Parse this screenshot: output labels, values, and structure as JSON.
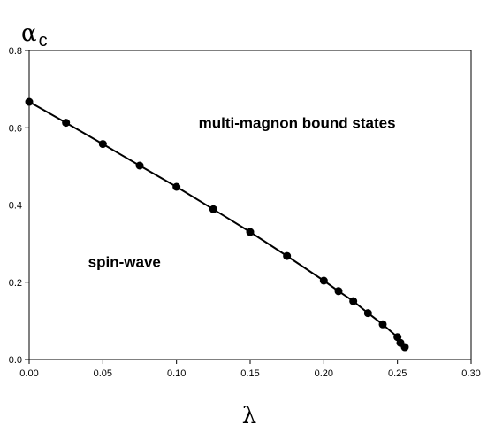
{
  "chart_data": {
    "type": "line",
    "ylabel": "α",
    "ylabel_sub": "c",
    "xlabel": "λ",
    "xlim": [
      0.0,
      0.3
    ],
    "ylim": [
      0.0,
      0.8
    ],
    "x_ticks": [
      "0.00",
      "0.05",
      "0.10",
      "0.15",
      "0.20",
      "0.25",
      "0.30"
    ],
    "y_ticks": [
      "0.0",
      "0.2",
      "0.4",
      "0.6",
      "0.8"
    ],
    "grid": false,
    "series": [
      {
        "color": "#000000",
        "marker": "circle",
        "x": [
          0.0,
          0.025,
          0.05,
          0.075,
          0.1,
          0.125,
          0.15,
          0.175,
          0.2,
          0.21,
          0.22,
          0.23,
          0.24,
          0.25,
          0.252,
          0.255
        ],
        "y": [
          0.667,
          0.613,
          0.558,
          0.502,
          0.447,
          0.389,
          0.33,
          0.268,
          0.204,
          0.177,
          0.151,
          0.12,
          0.091,
          0.058,
          0.043,
          0.032
        ]
      }
    ],
    "annotations": [
      {
        "text": "multi-magnon bound states",
        "x": 0.115,
        "y": 0.6
      },
      {
        "text": "spin-wave",
        "x": 0.04,
        "y": 0.24
      }
    ]
  }
}
